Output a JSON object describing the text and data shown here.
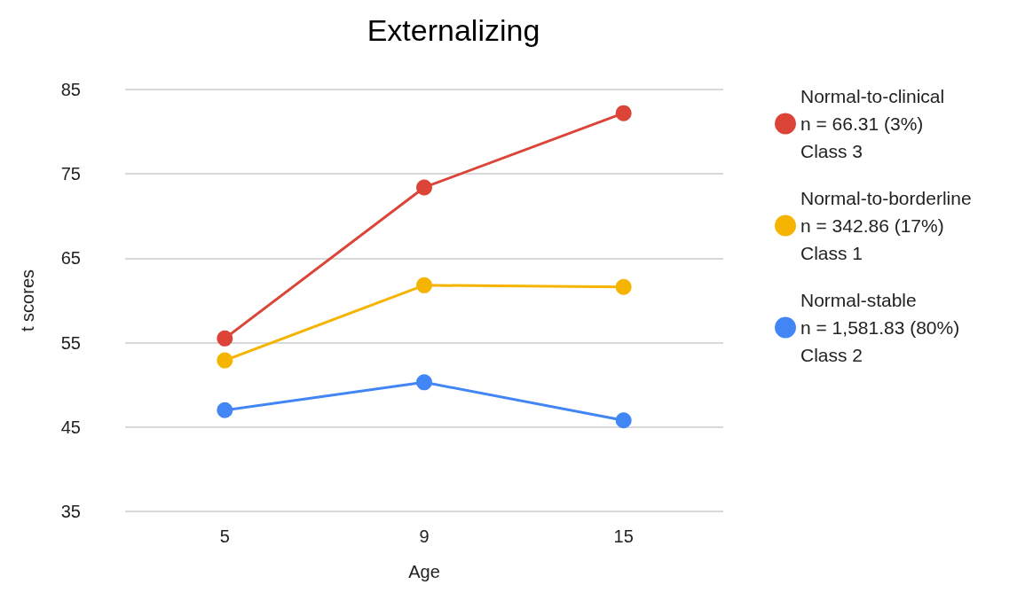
{
  "chart_data": {
    "type": "line",
    "title": "Externalizing",
    "xlabel": "Age",
    "ylabel": "t scores",
    "categories": [
      "5",
      "9",
      "15"
    ],
    "series": [
      {
        "name": "Normal-to-clinical\nn = 66.31 (3%)\nClass 3",
        "color": "#db4437",
        "values": [
          55.5,
          73.4,
          82.2
        ]
      },
      {
        "name": "Normal-to-borderline\nn = 342.86 (17%)\nClass 1",
        "color": "#f4b400",
        "values": [
          52.9,
          61.8,
          61.6
        ]
      },
      {
        "name": "Normal-stable\nn = 1,581.83 (80%)\nClass 2",
        "color": "#4285f4",
        "values": [
          47.0,
          50.3,
          45.8
        ]
      }
    ],
    "ylim": [
      35,
      85
    ],
    "yticks": [
      35,
      45,
      55,
      65,
      75,
      85
    ],
    "grid": "y",
    "legend": "right",
    "marker": "circle",
    "line_style": "solid"
  }
}
